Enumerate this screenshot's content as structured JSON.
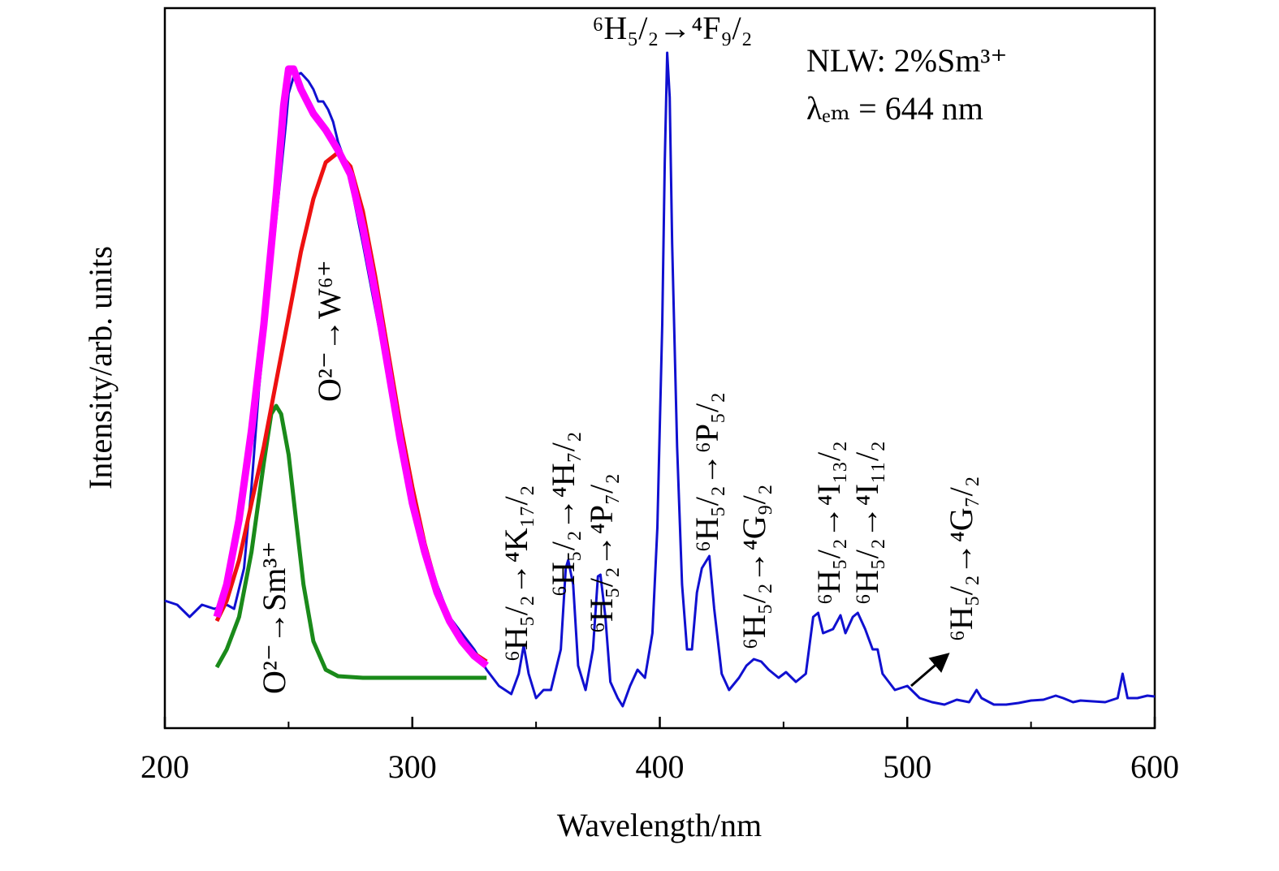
{
  "chart_data": {
    "type": "line",
    "x_label": "Wavelength/nm",
    "y_label": "Intensity/arb. units",
    "xlim": [
      200,
      600
    ],
    "xticks": [
      200,
      300,
      400,
      500,
      600
    ],
    "xminorticks": [
      250,
      350,
      450,
      550
    ],
    "ylim": [
      0,
      887
    ],
    "series": [
      {
        "color": "#1010d0",
        "width": 3,
        "x": [
          200,
          205,
          210,
          215,
          220,
          225,
          228,
          232,
          235,
          238,
          240,
          243,
          245,
          247,
          249,
          250,
          252,
          255,
          258,
          260,
          262,
          264,
          266,
          268,
          270,
          273,
          276,
          280,
          285,
          290,
          295,
          300,
          305,
          310,
          315,
          320,
          325,
          330,
          335,
          340,
          343,
          345,
          347,
          350,
          353,
          356,
          360,
          362,
          363,
          365,
          367,
          370,
          373,
          375,
          376,
          378,
          380,
          383,
          385,
          388,
          391,
          394,
          397,
          399,
          401,
          402,
          403,
          404,
          405,
          407,
          409,
          411,
          413,
          415,
          417,
          419,
          420,
          422,
          425,
          428,
          432,
          435,
          438,
          441,
          444,
          448,
          451,
          455,
          459,
          462,
          464,
          466,
          470,
          473,
          475,
          478,
          480,
          483,
          486,
          488,
          490,
          495,
          500,
          505,
          510,
          515,
          520,
          525,
          528,
          530,
          535,
          540,
          545,
          550,
          555,
          560,
          563,
          567,
          570,
          575,
          580,
          585,
          587,
          589,
          593,
          597,
          600
        ],
        "values": [
          157,
          152,
          137,
          152,
          147,
          152,
          147,
          197,
          297,
          417,
          477,
          567,
          627,
          687,
          747,
          782,
          802,
          807,
          797,
          787,
          772,
          772,
          762,
          747,
          722,
          697,
          657,
          597,
          517,
          437,
          357,
          287,
          227,
          177,
          137,
          117,
          97,
          72,
          52,
          42,
          67,
          102,
          67,
          37,
          47,
          47,
          97,
          197,
          207,
          177,
          77,
          47,
          97,
          187,
          189,
          137,
          57,
          37,
          27,
          52,
          72,
          62,
          117,
          247,
          497,
          697,
          832,
          777,
          597,
          347,
          177,
          97,
          97,
          167,
          197,
          207,
          212,
          147,
          67,
          47,
          62,
          77,
          85,
          82,
          72,
          62,
          69,
          57,
          67,
          137,
          142,
          117,
          122,
          139,
          117,
          137,
          142,
          122,
          97,
          97,
          67,
          47,
          52,
          37,
          32,
          29,
          35,
          32,
          47,
          37,
          29,
          29,
          31,
          34,
          35,
          40,
          37,
          32,
          34,
          33,
          32,
          37,
          67,
          37,
          37,
          40,
          39
        ]
      },
      {
        "color": "#1a8a1a",
        "width": 5,
        "x": [
          221,
          225,
          230,
          235,
          240,
          243,
          245,
          247,
          250,
          253,
          256,
          260,
          265,
          270,
          280,
          300,
          330
        ],
        "values": [
          75,
          97,
          137,
          217,
          327,
          387,
          397,
          387,
          337,
          257,
          177,
          107,
          72,
          64,
          62,
          62,
          62
        ]
      },
      {
        "color": "#ee1111",
        "width": 5,
        "x": [
          221,
          225,
          230,
          235,
          240,
          245,
          250,
          255,
          260,
          265,
          270,
          275,
          280,
          285,
          290,
          295,
          300,
          305,
          310,
          315,
          320,
          325,
          330
        ],
        "values": [
          132,
          157,
          207,
          277,
          347,
          427,
          507,
          587,
          652,
          697,
          709,
          692,
          637,
          557,
          467,
          377,
          297,
          227,
          172,
          132,
          107,
          92,
          82
        ]
      },
      {
        "color": "#ff00ff",
        "width": 9,
        "x": [
          221,
          225,
          230,
          235,
          240,
          245,
          248,
          250,
          252,
          255,
          260,
          265,
          270,
          275,
          280,
          285,
          290,
          295,
          300,
          305,
          310,
          315,
          320,
          325,
          330
        ],
        "values": [
          137,
          177,
          257,
          367,
          497,
          657,
          767,
          812,
          812,
          787,
          757,
          737,
          712,
          682,
          617,
          537,
          447,
          357,
          277,
          217,
          167,
          132,
          107,
          89,
          77
        ]
      }
    ],
    "annotations": [
      {
        "text": "⁶H₅/₂→⁴F₉/₂"
      },
      {
        "text": "NLW: 2%Sm³⁺"
      },
      {
        "text": "λₑₘ = 644 nm"
      },
      {
        "text": "O²⁻→W⁶⁺",
        "color": "#ee1111"
      },
      {
        "text": "O²⁻→Sm³⁺",
        "color": "#1a8a1a"
      },
      {
        "text": "⁶H₅/₂→⁴K₁₇/₂"
      },
      {
        "text": "⁶H₅/₂→⁴H₇/₂"
      },
      {
        "text": "⁶H₅/₂→⁴P₇/₂"
      },
      {
        "text": "⁶H₅/₂→⁶P₅/₂"
      },
      {
        "text": "⁶H₅/₂→⁴G₉/₂"
      },
      {
        "text": "⁶H₅/₂→⁴I₁₃/₂"
      },
      {
        "text": "⁶H₅/₂→⁴I₁₁/₂"
      },
      {
        "text": "⁶H₅/₂→⁴G₇/₂"
      }
    ]
  }
}
